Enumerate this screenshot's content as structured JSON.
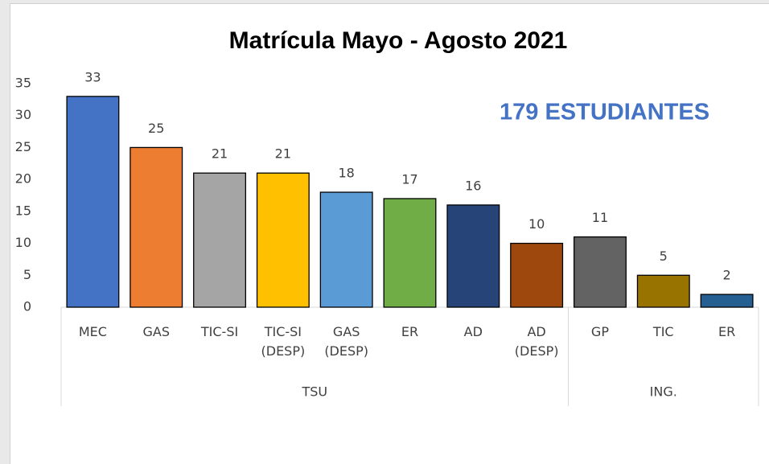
{
  "chart_data": {
    "type": "bar",
    "title": "Matrícula Mayo - Agosto 2021",
    "annotation": "179 ESTUDIANTES",
    "categories": [
      "MEC",
      "GAS",
      "TIC-SI",
      "TIC-SI (DESP)",
      "GAS (DESP)",
      "ER",
      "AD",
      "AD (DESP)",
      "GP",
      "TIC",
      "ER"
    ],
    "values": [
      33,
      25,
      21,
      21,
      18,
      17,
      16,
      10,
      11,
      5,
      2
    ],
    "colors": [
      "#4472c4",
      "#ed7d31",
      "#a5a5a5",
      "#ffc000",
      "#5b9bd5",
      "#70ad47",
      "#264478",
      "#9e480e",
      "#636363",
      "#997300",
      "#255e91"
    ],
    "groups": [
      {
        "name": "TSU",
        "count": 8
      },
      {
        "name": "ING.",
        "count": 3
      }
    ],
    "ylim": [
      0,
      35
    ],
    "yticks": [
      0,
      5,
      10,
      15,
      20,
      25,
      30,
      35
    ],
    "grid": false
  }
}
